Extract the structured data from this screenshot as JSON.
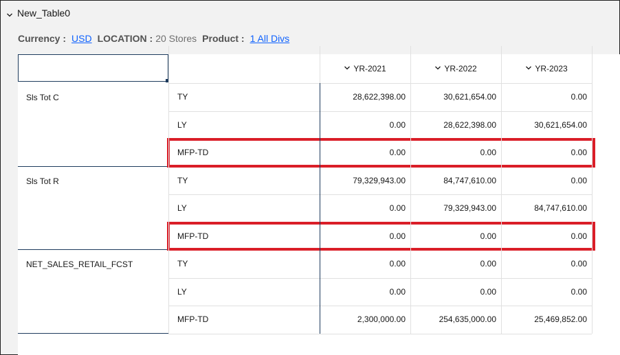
{
  "panel": {
    "title": "New_Table0",
    "collapse_icon": "chevron-down-icon"
  },
  "filters": {
    "currency_label": "Currency :",
    "currency_value": "USD",
    "location_label": "LOCATION :",
    "location_value": "20 Stores",
    "product_label": "Product :",
    "product_value": "1 All Divs"
  },
  "table": {
    "columns": [
      "YR-2021",
      "YR-2022",
      "YR-2023"
    ],
    "groups": [
      {
        "metric": "Sls Tot C",
        "rows": [
          {
            "type": "TY",
            "values": [
              "28,622,398.00",
              "30,621,654.00",
              "0.00"
            ]
          },
          {
            "type": "LY",
            "values": [
              "0.00",
              "28,622,398.00",
              "30,621,654.00"
            ]
          },
          {
            "type": "MFP-TD",
            "values": [
              "0.00",
              "0.00",
              "0.00"
            ],
            "highlighted": true
          }
        ]
      },
      {
        "metric": "Sls Tot R",
        "rows": [
          {
            "type": "TY",
            "values": [
              "79,329,943.00",
              "84,747,610.00",
              "0.00"
            ]
          },
          {
            "type": "LY",
            "values": [
              "0.00",
              "79,329,943.00",
              "84,747,610.00"
            ]
          },
          {
            "type": "MFP-TD",
            "values": [
              "0.00",
              "0.00",
              "0.00"
            ],
            "highlighted": true
          }
        ]
      },
      {
        "metric": "NET_SALES_RETAIL_FCST",
        "rows": [
          {
            "type": "TY",
            "values": [
              "0.00",
              "0.00",
              "0.00"
            ]
          },
          {
            "type": "LY",
            "values": [
              "0.00",
              "0.00",
              "0.00"
            ]
          },
          {
            "type": "MFP-TD",
            "values": [
              "2,300,000.00",
              "254,635,000.00",
              "25,469,852.00"
            ]
          }
        ]
      }
    ]
  },
  "colors": {
    "highlight": "#da1e28",
    "link": "#0f62fe",
    "dark_border": "#1c3a5c"
  }
}
